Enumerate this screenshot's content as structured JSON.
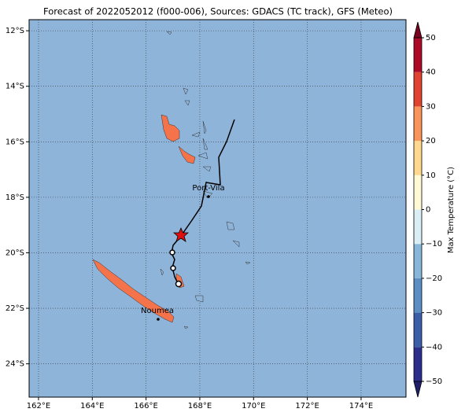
{
  "title": "Forecast of 2022052012 (f000-006), Sources: GDACS (TC track), GFS (Meteo)",
  "map": {
    "xlim": [
      161.65,
      175.67
    ],
    "ylim": [
      -25.2,
      -11.6
    ],
    "xticks": [
      {
        "value": 162,
        "label": "162°E"
      },
      {
        "value": 164,
        "label": "164°E"
      },
      {
        "value": 166,
        "label": "166°E"
      },
      {
        "value": 168,
        "label": "168°E"
      },
      {
        "value": 170,
        "label": "170°E"
      },
      {
        "value": 172,
        "label": "172°E"
      },
      {
        "value": 174,
        "label": "174°E"
      }
    ],
    "yticks": [
      {
        "value": -12,
        "label": "12°S"
      },
      {
        "value": -14,
        "label": "14°S"
      },
      {
        "value": -16,
        "label": "16°S"
      },
      {
        "value": -18,
        "label": "18°S"
      },
      {
        "value": -20,
        "label": "20°S"
      },
      {
        "value": -22,
        "label": "22°S"
      },
      {
        "value": -24,
        "label": "24°S"
      }
    ],
    "places": [
      "Port-Vila",
      "Noumea"
    ],
    "grid": true
  },
  "colorbar": {
    "label": "Max Temperature (°C)",
    "lim": [
      -50,
      50
    ],
    "ticks": [
      {
        "value": -50,
        "label": "−50"
      },
      {
        "value": -40,
        "label": "−40"
      },
      {
        "value": -30,
        "label": "−30"
      },
      {
        "value": -20,
        "label": "−20"
      },
      {
        "value": -10,
        "label": "−10"
      },
      0,
      10,
      20,
      30,
      40,
      50
    ],
    "colors": [
      "#2b2e8a",
      "#3a5ea8",
      "#5b8fc4",
      "#86b6d8",
      "#d9eef5",
      "#fff9d4",
      "#fed88f",
      "#f9945a",
      "#e0432f",
      "#ac0a26"
    ],
    "extend_colors": [
      "#1f1f6b",
      "#7a0020"
    ]
  }
}
